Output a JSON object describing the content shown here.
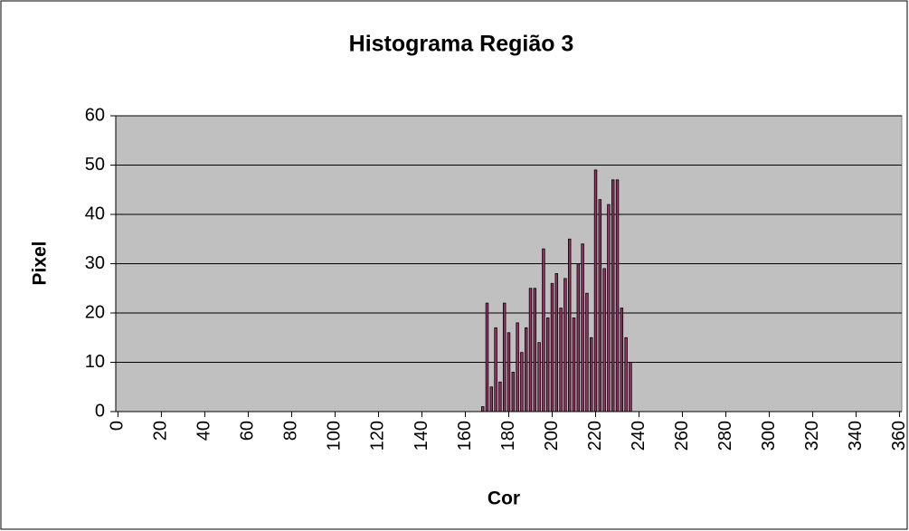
{
  "chart_data": {
    "type": "bar",
    "title": "Histograma Região 3",
    "xlabel": "Cor",
    "ylabel": "Pixel",
    "x": [
      168,
      170,
      172,
      174,
      176,
      178,
      180,
      182,
      184,
      186,
      188,
      190,
      192,
      194,
      196,
      198,
      200,
      202,
      204,
      206,
      208,
      210,
      212,
      214,
      216,
      218,
      220,
      222,
      224,
      226,
      228,
      230,
      232,
      234,
      236
    ],
    "values": [
      1,
      22,
      5,
      17,
      6,
      22,
      16,
      8,
      18,
      12,
      17,
      25,
      25,
      14,
      33,
      19,
      26,
      28,
      21,
      27,
      35,
      19,
      30,
      34,
      24,
      15,
      49,
      43,
      29,
      42,
      47,
      47,
      21,
      15,
      10
    ],
    "color": "#993366",
    "plot_background": "#c0c0c0",
    "xlim": [
      -1,
      361
    ],
    "xticks": [
      0,
      20,
      40,
      60,
      80,
      100,
      120,
      140,
      160,
      180,
      200,
      220,
      240,
      260,
      280,
      300,
      320,
      340,
      360
    ],
    "ylim": [
      0,
      60
    ],
    "yticks": [
      0,
      10,
      20,
      30,
      40,
      50,
      60
    ],
    "grid": true
  }
}
